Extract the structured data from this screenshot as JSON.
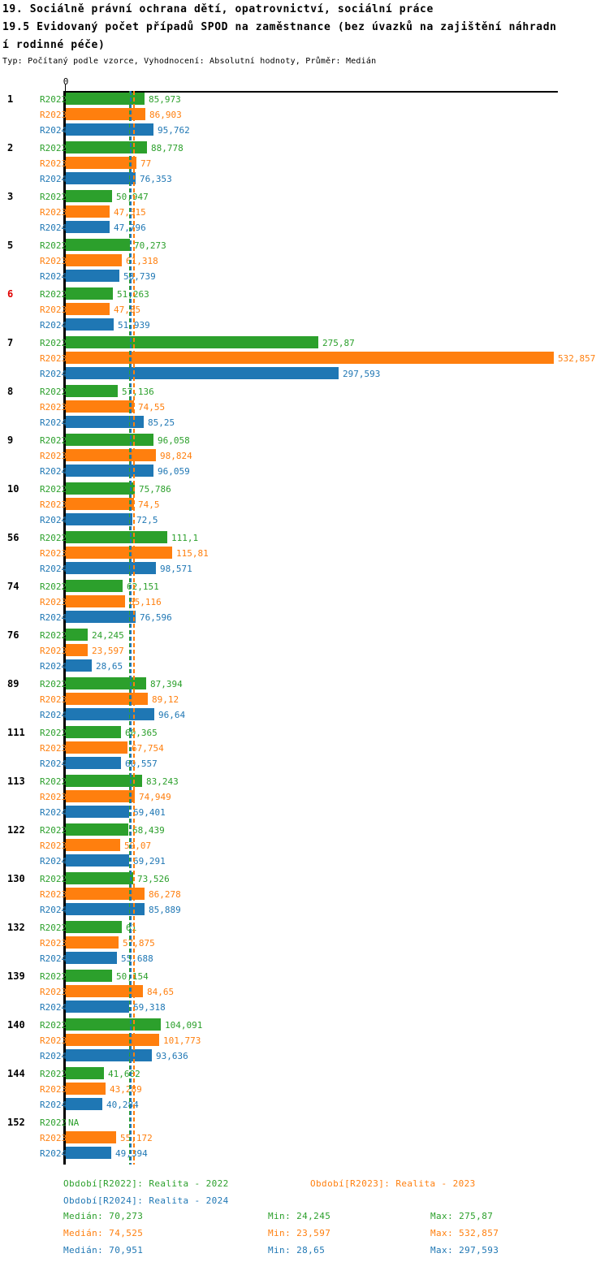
{
  "title": {
    "line1": "19. Sociálně právní ochrana dětí, opatrovnictví, sociální práce",
    "line2": "19.5 Evidovaný počet případů SPOD na zaměstnance (bez úvazků na zajištění náhradn",
    "line3": "í rodinné péče)",
    "meta": "Typ: Počítaný podle vzorce, Vyhodnocení: Absolutní hodnoty, Průměr: Medián"
  },
  "axis": {
    "zero_label": "0"
  },
  "colors": {
    "green": "#2ca02c",
    "orange": "#ff7f0e",
    "blue": "#1f77b4",
    "highlight_red": "#e00000",
    "axis_black": "#000000"
  },
  "chart_data": {
    "type": "bar",
    "orientation": "horizontal",
    "legend_position": "bottom",
    "x_axis": {
      "zero_label": "0",
      "grid": false,
      "implied_max": 533
    },
    "series": [
      {
        "id": "R2022",
        "label": "R2022",
        "color": "#2ca02c",
        "median": 70.273
      },
      {
        "id": "R2023",
        "label": "R2023",
        "color": "#ff7f0e",
        "median": 74.525
      },
      {
        "id": "R2024",
        "label": "R2024",
        "color": "#1f77b4",
        "median": 70.951
      }
    ],
    "groups": [
      {
        "id": "1",
        "highlight": false,
        "values": [
          85.973,
          86.903,
          95.762
        ],
        "labels": [
          "85,973",
          "86,903",
          "95,762"
        ]
      },
      {
        "id": "2",
        "highlight": false,
        "values": [
          88.778,
          77,
          76.353
        ],
        "labels": [
          "88,778",
          "77",
          "76,353"
        ]
      },
      {
        "id": "3",
        "highlight": false,
        "values": [
          50.947,
          47.515,
          47.796
        ],
        "labels": [
          "50,947",
          "47,515",
          "47,796"
        ]
      },
      {
        "id": "5",
        "highlight": false,
        "values": [
          70.273,
          61.318,
          58.739
        ],
        "labels": [
          "70,273",
          "61,318",
          "58,739"
        ]
      },
      {
        "id": "6",
        "highlight": true,
        "values": [
          51.263,
          47.85,
          51.939
        ],
        "labels": [
          "51,263",
          "47,85",
          "51,939"
        ]
      },
      {
        "id": "7",
        "highlight": false,
        "values": [
          275.87,
          532.857,
          297.593
        ],
        "labels": [
          "275,87",
          "532,857",
          "297,593"
        ]
      },
      {
        "id": "8",
        "highlight": false,
        "values": [
          57.136,
          74.55,
          85.25
        ],
        "labels": [
          "57,136",
          "74,55",
          "85,25"
        ]
      },
      {
        "id": "9",
        "highlight": false,
        "values": [
          96.058,
          98.824,
          96.059
        ],
        "labels": [
          "96,058",
          "98,824",
          "96,059"
        ]
      },
      {
        "id": "10",
        "highlight": false,
        "values": [
          75.786,
          74.5,
          72.5
        ],
        "labels": [
          "75,786",
          "74,5",
          "72,5"
        ]
      },
      {
        "id": "56",
        "highlight": false,
        "values": [
          111.1,
          115.81,
          98.571
        ],
        "labels": [
          "111,1",
          "115,81",
          "98,571"
        ]
      },
      {
        "id": "74",
        "highlight": false,
        "values": [
          62.151,
          65.116,
          76.596
        ],
        "labels": [
          "62,151",
          "65,116",
          "76,596"
        ]
      },
      {
        "id": "76",
        "highlight": false,
        "values": [
          24.245,
          23.597,
          28.65
        ],
        "labels": [
          "24,245",
          "23,597",
          "28,65"
        ]
      },
      {
        "id": "89",
        "highlight": false,
        "values": [
          87.394,
          89.12,
          96.64
        ],
        "labels": [
          "87,394",
          "89,12",
          "96,64"
        ]
      },
      {
        "id": "111",
        "highlight": false,
        "values": [
          60.365,
          67.754,
          60.557
        ],
        "labels": [
          "60,365",
          "67,754",
          "60,557"
        ]
      },
      {
        "id": "113",
        "highlight": false,
        "values": [
          83.243,
          74.949,
          69.401
        ],
        "labels": [
          "83,243",
          "74,949",
          "69,401"
        ]
      },
      {
        "id": "122",
        "highlight": false,
        "values": [
          68.439,
          59.07,
          69.291
        ],
        "labels": [
          "68,439",
          "59,07",
          "69,291"
        ]
      },
      {
        "id": "130",
        "highlight": false,
        "values": [
          73.526,
          86.278,
          85.889
        ],
        "labels": [
          "73,526",
          "86,278",
          "85,889"
        ]
      },
      {
        "id": "132",
        "highlight": false,
        "values": [
          61,
          57.875,
          55.688
        ],
        "labels": [
          "61",
          "57,875",
          "55,688"
        ]
      },
      {
        "id": "139",
        "highlight": false,
        "values": [
          50.154,
          84.65,
          69.318
        ],
        "labels": [
          "50,154",
          "84,65",
          "69,318"
        ]
      },
      {
        "id": "140",
        "highlight": false,
        "values": [
          104.091,
          101.773,
          93.636
        ],
        "labels": [
          "104,091",
          "101,773",
          "93,636"
        ]
      },
      {
        "id": "144",
        "highlight": false,
        "values": [
          41.682,
          43.289,
          40.284
        ],
        "labels": [
          "41,682",
          "43,289",
          "40,284"
        ]
      },
      {
        "id": "152",
        "highlight": false,
        "values": [
          null,
          55.172,
          49.394
        ],
        "labels": [
          "NA",
          "55,172",
          "49,394"
        ]
      }
    ]
  },
  "legend": {
    "r2022": "Období[R2022]: Realita - 2022",
    "r2023": "Období[R2023]: Realita - 2023",
    "r2024": "Období[R2024]: Realita - 2024"
  },
  "stats": {
    "rows": [
      {
        "series": "R2022",
        "color": "#2ca02c",
        "median": "Medián: 70,273",
        "min": "Min: 24,245",
        "max": "Max: 275,87"
      },
      {
        "series": "R2023",
        "color": "#ff7f0e",
        "median": "Medián: 74,525",
        "min": "Min: 23,597",
        "max": "Max: 532,857"
      },
      {
        "series": "R2024",
        "color": "#1f77b4",
        "median": "Medián: 70,951",
        "min": "Min: 28,65",
        "max": "Max: 297,593"
      }
    ]
  }
}
